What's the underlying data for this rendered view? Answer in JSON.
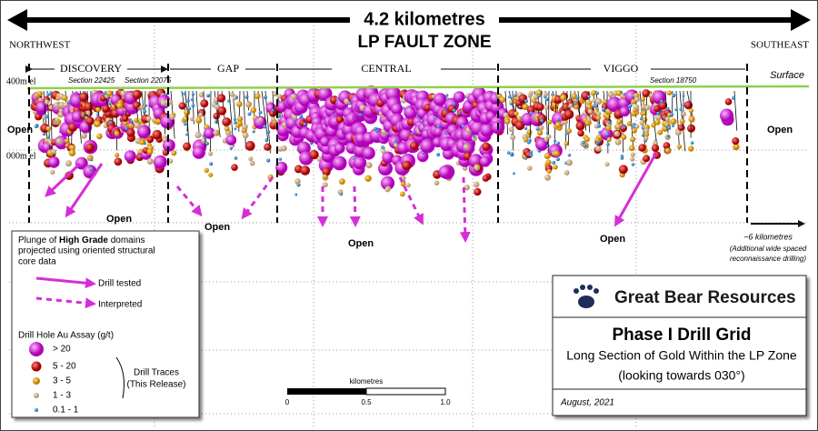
{
  "header": {
    "distance": "4.2 kilometres",
    "zone": "LP FAULT ZONE",
    "left_direction": "NORTHWEST",
    "right_direction": "SOUTHEAST"
  },
  "zones": [
    "DISCOVERY",
    "GAP",
    "CENTRAL",
    "VIGGO"
  ],
  "sections": [
    "Section 22425",
    "Section 22075",
    "Section 18750"
  ],
  "elevations": [
    "400m el",
    "000m el"
  ],
  "surface": "Surface",
  "open_labels": [
    "Open",
    "Open",
    "Open",
    "Open",
    "Open",
    "Open"
  ],
  "extension": {
    "distance": "~6 kilometres",
    "note_line1": "(Additional wide spaced",
    "note_line2": "reconnaissance drilling)"
  },
  "legend": {
    "plunge_line1_pre": "Plunge of ",
    "plunge_line1_bold": "High Grade",
    "plunge_line1_post": " domains",
    "plunge_line2": "projected using oriented structural",
    "plunge_line3": "core data",
    "drill_tested": "Drill tested",
    "interpreted": "Interpreted",
    "assay_title": "Drill Hole Au Assay (g/t)",
    "assay_items": [
      "> 20",
      "5 - 20",
      "3 - 5",
      "1 - 3",
      "0.1 - 1"
    ],
    "traces_line1": "Drill Traces",
    "traces_line2": "(This Release)"
  },
  "scale": {
    "unit": "kilometres",
    "ticks": [
      "0",
      "0.5",
      "1.0"
    ]
  },
  "title_box": {
    "company": "Great Bear Resources",
    "title": "Phase I Drill Grid",
    "subtitle": "Long Section of Gold Within the LP Zone",
    "view": "(looking towards 030°)",
    "date": "August, 2021"
  }
}
